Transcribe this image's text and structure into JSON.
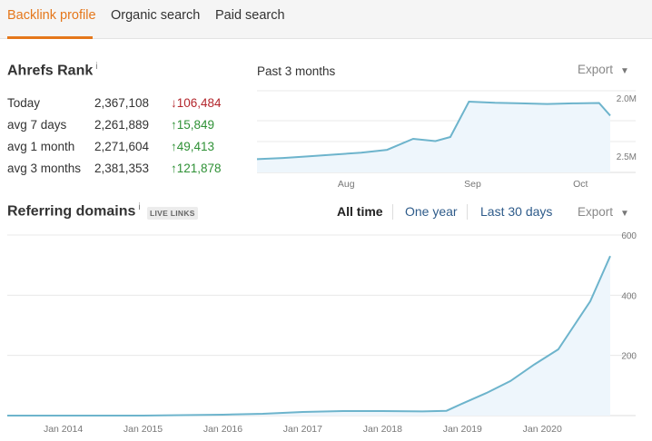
{
  "tabs": [
    {
      "label": "Backlink profile",
      "active": true
    },
    {
      "label": "Organic search",
      "active": false
    },
    {
      "label": "Paid search",
      "active": false
    }
  ],
  "ahrefs_rank": {
    "title": "Ahrefs Rank",
    "info": "i",
    "rows": [
      {
        "label": "Today",
        "value": "2,367,108",
        "change": "106,484",
        "direction": "down"
      },
      {
        "label": "avg 7 days",
        "value": "2,261,889",
        "change": "15,849",
        "direction": "up"
      },
      {
        "label": "avg 1 month",
        "value": "2,271,604",
        "change": "49,413",
        "direction": "up"
      },
      {
        "label": "avg 3 months",
        "value": "2,381,353",
        "change": "121,878",
        "direction": "up"
      }
    ]
  },
  "rank_chart_header": {
    "period": "Past 3 months",
    "export": "Export"
  },
  "referring_domains": {
    "title": "Referring domains",
    "info": "i",
    "badge": "LIVE LINKS",
    "ranges": [
      "All time",
      "One year",
      "Last 30 days"
    ],
    "active_range": "All time",
    "export": "Export"
  },
  "colors": {
    "accent_orange": "#e5771b",
    "link_blue": "#2e5b8a",
    "line": "#6db4cc",
    "area": "#eef6fc",
    "down": "#b3262c",
    "up": "#2f9136"
  },
  "icons": {
    "down_arrow": "↓",
    "up_arrow": "↑",
    "dropdown": "▼"
  },
  "chart_data": [
    {
      "type": "area",
      "name": "Ahrefs Rank — Past 3 months",
      "title": "",
      "xlabel": "",
      "ylabel": "",
      "y_axis_inverted": true,
      "ylim": [
        2500000,
        2000000
      ],
      "yticks": [
        "2.0M",
        "2.5M"
      ],
      "xticks": [
        "Aug",
        "Sep",
        "Oct"
      ],
      "x": [
        "Jul 15",
        "Jul 22",
        "Jul 29",
        "Aug 5",
        "Aug 12",
        "Aug 19",
        "Aug 26",
        "Sep 1",
        "Sep 5",
        "Sep 10",
        "Sep 17",
        "Sep 24",
        "Oct 1",
        "Oct 8",
        "Oct 15",
        "Oct 18"
      ],
      "values": [
        2495000,
        2485000,
        2470000,
        2455000,
        2440000,
        2415000,
        2320000,
        2340000,
        2305000,
        2000000,
        2010000,
        2015000,
        2020000,
        2015000,
        2012000,
        2120000
      ],
      "grid": true
    },
    {
      "type": "area",
      "name": "Referring domains — All time",
      "title": "",
      "xlabel": "",
      "ylabel": "",
      "ylim": [
        0,
        600
      ],
      "yticks": [
        "200",
        "400",
        "600"
      ],
      "xticks": [
        "Jan 2014",
        "Jan 2015",
        "Jan 2016",
        "Jan 2017",
        "Jan 2018",
        "Jan 2019",
        "Jan 2020"
      ],
      "x": [
        2013.0,
        2015.0,
        2016.0,
        2016.5,
        2017.0,
        2017.5,
        2018.0,
        2018.5,
        2018.8,
        2019.0,
        2019.3,
        2019.6,
        2019.9,
        2020.2,
        2020.4,
        2020.6,
        2020.75,
        2020.85
      ],
      "values": [
        0,
        0,
        3,
        6,
        12,
        15,
        15,
        14,
        16,
        40,
        75,
        115,
        170,
        220,
        300,
        380,
        470,
        530
      ],
      "grid": true
    }
  ]
}
